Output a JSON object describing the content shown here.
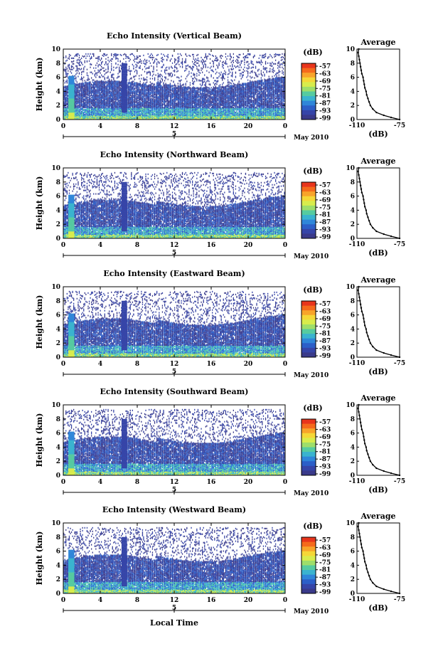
{
  "chart_data": {
    "type": "heatmap",
    "panels": [
      {
        "title": "Echo Intensity (Vertical Beam)"
      },
      {
        "title": "Echo Intensity (Northward Beam)"
      },
      {
        "title": "Echo Intensity (Eastward Beam)"
      },
      {
        "title": "Echo Intensity (Southward Beam)"
      },
      {
        "title": "Echo Intensity (Westward Beam)"
      }
    ],
    "ylabel": "Height (km)",
    "ylim": [
      0,
      10
    ],
    "yticks": [
      "0",
      "2",
      "4",
      "6",
      "8",
      "10"
    ],
    "xlim": [
      0,
      24
    ],
    "xticks": [
      "0",
      "4",
      "8",
      "12",
      "16",
      "20",
      "0"
    ],
    "date_tick": "5",
    "date_label": "May 2010",
    "xlabel": "Local Time",
    "colorbar": {
      "unit": "(dB)",
      "labels": [
        "-57",
        "-63",
        "-69",
        "-75",
        "-81",
        "-87",
        "-93",
        "-99"
      ],
      "colors": [
        "#e8351c",
        "#f56a1c",
        "#f8a42a",
        "#f5d737",
        "#d8ec4c",
        "#9ede6a",
        "#56cba0",
        "#3ab3cf",
        "#2f86d9",
        "#2c5fc8",
        "#3645a8",
        "#3a3a8a"
      ]
    },
    "average": {
      "title": "Average",
      "xlabel": "(dB)",
      "xlim": [
        -110,
        -75
      ],
      "xticks": [
        "-110",
        "-75"
      ],
      "yticks": [
        "0",
        "2",
        "4",
        "6",
        "8",
        "10"
      ],
      "profile": [
        [
          0,
          -75
        ],
        [
          0.3,
          -82
        ],
        [
          0.6,
          -88
        ],
        [
          1,
          -94
        ],
        [
          1.5,
          -97
        ],
        [
          2,
          -99
        ],
        [
          2.5,
          -100
        ],
        [
          3,
          -101
        ],
        [
          3.5,
          -102
        ],
        [
          4,
          -102.5
        ],
        [
          4.5,
          -103.5
        ],
        [
          5,
          -104
        ],
        [
          5.5,
          -104.5
        ],
        [
          6,
          -105
        ],
        [
          6.5,
          -106
        ],
        [
          7,
          -106.5
        ],
        [
          7.5,
          -107
        ],
        [
          8,
          -107.5
        ],
        [
          8.5,
          -108
        ],
        [
          9,
          -108.5
        ],
        [
          9.5,
          -109
        ],
        [
          10,
          -108.5
        ]
      ]
    }
  }
}
